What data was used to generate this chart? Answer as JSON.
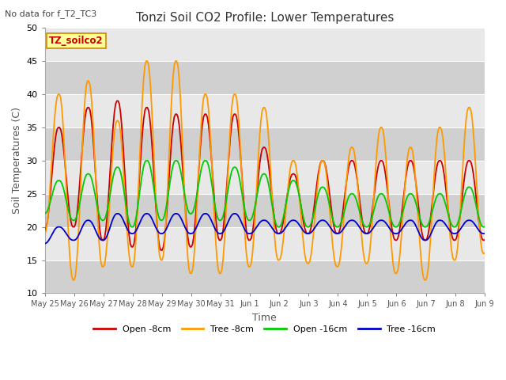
{
  "title": "Tonzi Soil CO2 Profile: Lower Temperatures",
  "subtitle": "No data for f_T2_TC3",
  "xlabel": "Time",
  "ylabel": "Soil Temperatures (C)",
  "ylim": [
    10,
    50
  ],
  "yticks": [
    10,
    15,
    20,
    25,
    30,
    35,
    40,
    45,
    50
  ],
  "fig_bg_color": "#ffffff",
  "plot_bg_color": "#e8e8e8",
  "band_color_dark": "#d0d0d0",
  "band_color_light": "#e8e8e8",
  "grid_color": "#ffffff",
  "legend_label": "TZ_soilco2",
  "legend_box_facecolor": "#ffff99",
  "legend_box_edgecolor": "#cc8800",
  "series": {
    "open_8cm": {
      "color": "#cc0000",
      "label": "Open -8cm",
      "lw": 1.3
    },
    "tree_8cm": {
      "color": "#ff9900",
      "label": "Tree -8cm",
      "lw": 1.3
    },
    "open_16cm": {
      "color": "#00cc00",
      "label": "Open -16cm",
      "lw": 1.3
    },
    "tree_16cm": {
      "color": "#0000cc",
      "label": "Tree -16cm",
      "lw": 1.3
    }
  },
  "x_tick_labels": [
    "May 25",
    "May 26",
    "May 27",
    "May 28",
    "May 29",
    "May 30",
    "May 31",
    "Jun 1",
    "Jun 2",
    "Jun 3",
    "Jun 4",
    "Jun 5",
    "Jun 6",
    "Jun 7",
    "Jun 8",
    "Jun 9"
  ],
  "n_days": 16,
  "open_8cm_y": [
    19.5,
    35,
    20,
    38,
    18,
    39,
    17,
    38,
    16.5,
    37,
    17,
    37,
    18,
    37,
    18,
    32,
    19,
    28,
    19,
    30,
    19,
    30,
    19,
    30,
    18,
    30,
    18,
    30,
    18,
    30,
    18,
    32
  ],
  "tree_8cm_y": [
    19,
    40,
    12,
    42,
    14,
    36,
    14,
    45,
    15,
    45,
    13,
    40,
    13,
    40,
    14,
    38,
    15,
    30,
    14.5,
    30,
    14,
    32,
    14.5,
    35,
    13,
    32,
    12,
    35,
    15,
    38,
    16,
    28
  ],
  "open_16cm_y": [
    22,
    27,
    21,
    28,
    21,
    29,
    20,
    30,
    21,
    30,
    22,
    30,
    21,
    29,
    21,
    28,
    20,
    27,
    20,
    26,
    20,
    25,
    20,
    25,
    20,
    25,
    20,
    25,
    20,
    26,
    20,
    27
  ],
  "tree_16cm_y": [
    17.5,
    20,
    18,
    21,
    18,
    22,
    19,
    22,
    19,
    22,
    19,
    22,
    19,
    22,
    19,
    21,
    19,
    21,
    19,
    21,
    19,
    21,
    19,
    21,
    19,
    21,
    18,
    21,
    19,
    21,
    19,
    21
  ]
}
